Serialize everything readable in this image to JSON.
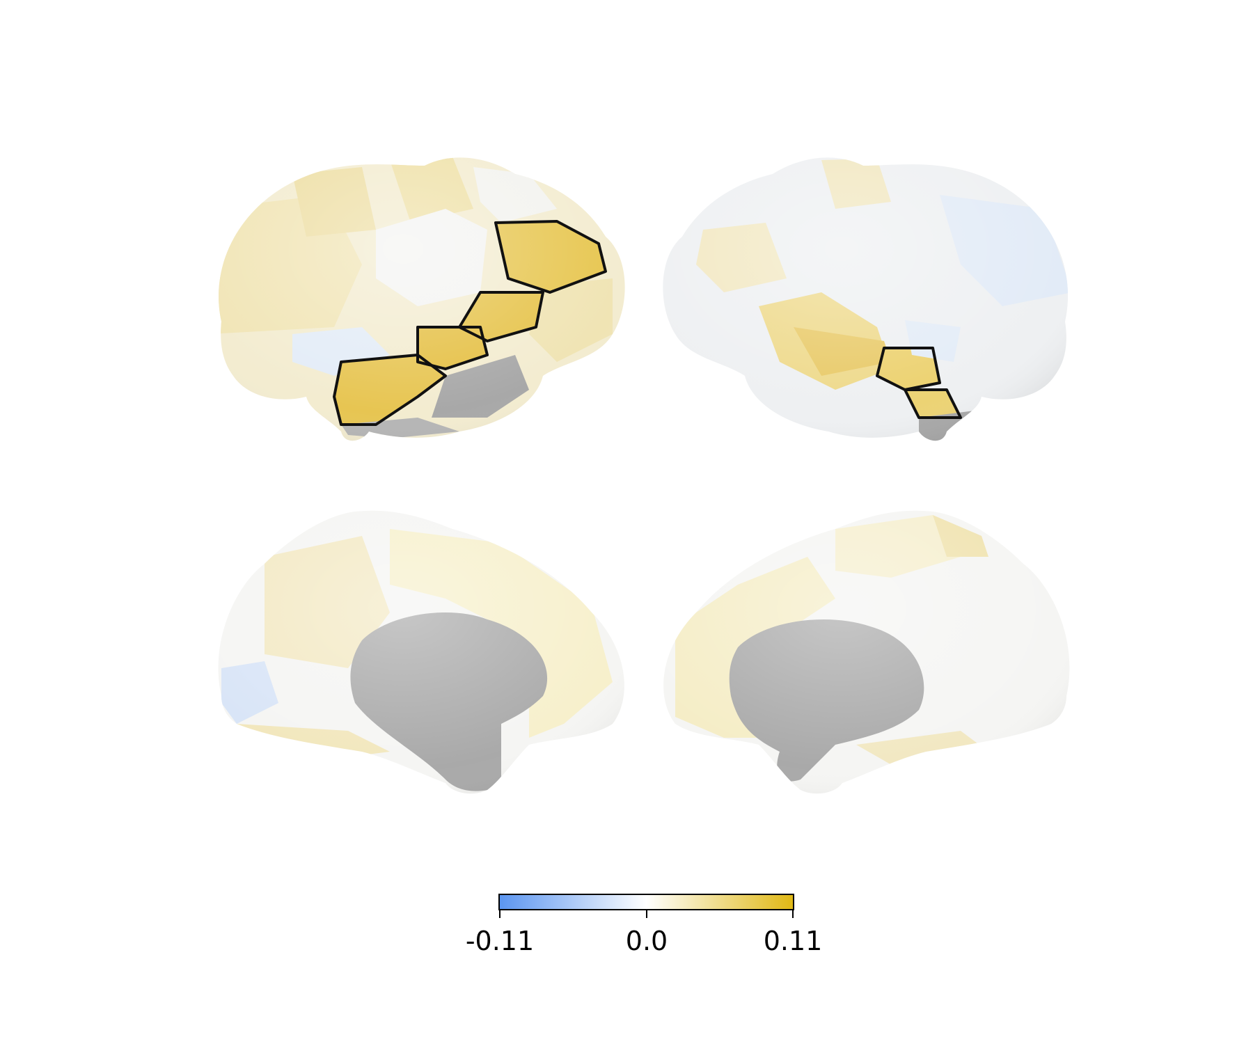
{
  "colorbar": {
    "min_label": "-0.11",
    "mid_label": "0.0",
    "max_label": "0.11",
    "min_value": -0.11,
    "mid_value": 0.0,
    "max_value": 0.11,
    "colors": {
      "negative": "#5b95f0",
      "zero": "#ffffff",
      "positive": "#e0b814"
    }
  },
  "views": [
    "left-lateral",
    "right-lateral",
    "left-medial",
    "right-medial"
  ],
  "colors": {
    "medial_wall": "#a8a8a8",
    "roi_border": "#111111",
    "strong_positive": "#e6c34a",
    "mid_positive": "#efdc94",
    "light_positive": "#f7efc7",
    "neutral": "#f2f3f5",
    "light_negative": "#dce8f8"
  }
}
